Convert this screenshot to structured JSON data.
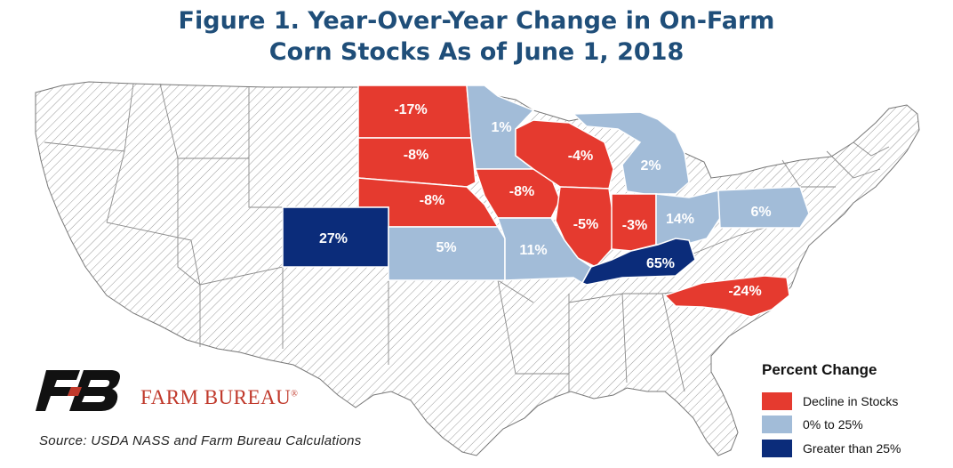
{
  "title": {
    "line1": "Figure 1. Year-Over-Year Change in On-Farm",
    "line2": "Corn Stocks As of June 1, 2018"
  },
  "colors": {
    "decline": "#e53a2f",
    "light_blue": "#a2bcd8",
    "dark_blue": "#0b2c7a",
    "hatch_bg": "#ffffff",
    "hatch_line": "#9a9a9a",
    "title": "#1f4e79",
    "brand_red": "#c0392b"
  },
  "states": [
    {
      "name": "North Dakota",
      "label": "-17%",
      "category": "decline"
    },
    {
      "name": "South Dakota",
      "label": "-8%",
      "category": "decline"
    },
    {
      "name": "Nebraska",
      "label": "-8%",
      "category": "decline"
    },
    {
      "name": "Minnesota",
      "label": "1%",
      "category": "light_blue"
    },
    {
      "name": "Iowa",
      "label": "-8%",
      "category": "decline"
    },
    {
      "name": "Wisconsin",
      "label": "-4%",
      "category": "decline"
    },
    {
      "name": "Michigan",
      "label": "2%",
      "category": "light_blue"
    },
    {
      "name": "Illinois",
      "label": "-5%",
      "category": "decline"
    },
    {
      "name": "Indiana",
      "label": "-3%",
      "category": "decline"
    },
    {
      "name": "Ohio",
      "label": "14%",
      "category": "light_blue"
    },
    {
      "name": "Pennsylvania",
      "label": "6%",
      "category": "light_blue"
    },
    {
      "name": "Colorado",
      "label": "27%",
      "category": "dark_blue"
    },
    {
      "name": "Kansas",
      "label": "5%",
      "category": "light_blue"
    },
    {
      "name": "Missouri",
      "label": "11%",
      "category": "light_blue"
    },
    {
      "name": "Kentucky",
      "label": "65%",
      "category": "dark_blue"
    },
    {
      "name": "North Carolina",
      "label": "-24%",
      "category": "decline"
    }
  ],
  "legend": {
    "title": "Percent Change",
    "items": [
      {
        "label": "Decline in Stocks",
        "category": "decline"
      },
      {
        "label": "0% to 25%",
        "category": "light_blue"
      },
      {
        "label": "Greater than 25%",
        "category": "dark_blue"
      }
    ]
  },
  "brand": {
    "name": "FARM BUREAU",
    "registered": "®",
    "logo_icon": "farm-bureau-fb-logo"
  },
  "source": "Source: USDA NASS and Farm Bureau Calculations"
}
